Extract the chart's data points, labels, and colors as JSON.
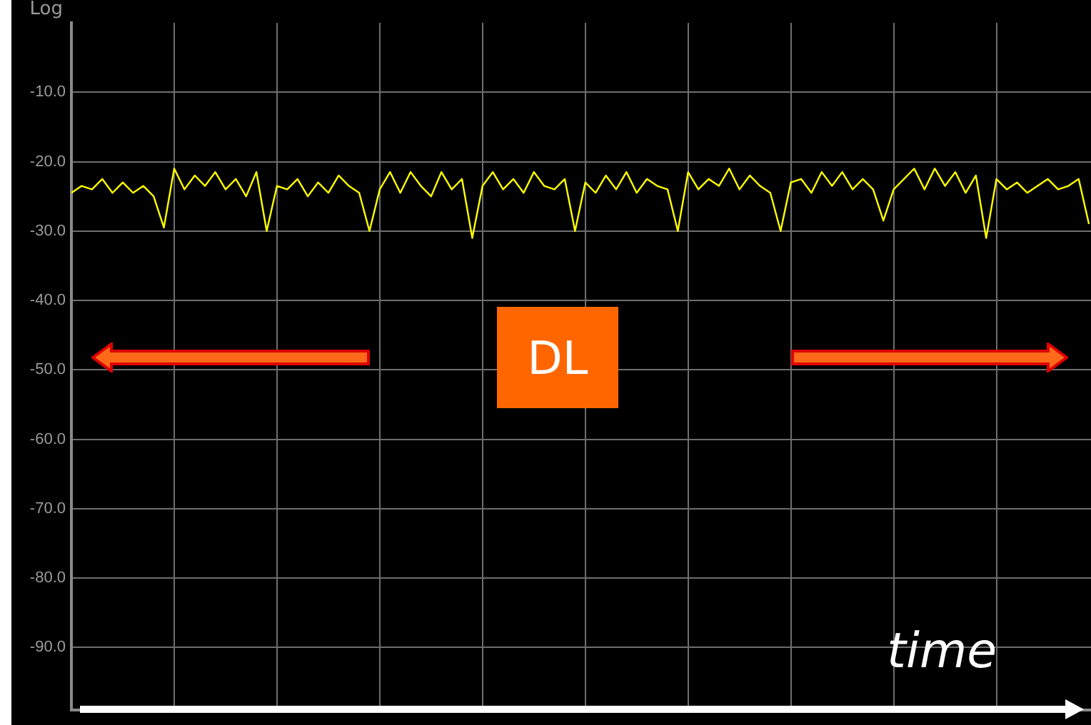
{
  "chart_data": {
    "type": "line",
    "ylabel": "Log",
    "xlabel": "time",
    "annotations": [
      "DL"
    ],
    "categories": [
      null,
      null,
      null,
      null,
      null,
      null,
      null,
      null,
      null,
      null,
      null,
      null,
      null,
      null,
      null,
      null,
      null,
      null,
      null,
      null,
      null,
      null,
      null,
      null,
      null,
      null,
      null,
      null,
      null,
      null,
      null,
      null,
      null,
      null,
      null,
      null,
      null,
      null,
      null,
      null,
      null,
      null,
      null,
      null,
      null,
      null,
      null,
      null,
      null,
      null,
      null,
      null,
      null,
      null,
      null,
      null,
      null,
      null,
      null,
      null,
      null,
      null,
      null,
      null,
      null,
      null,
      null,
      null,
      null,
      null,
      null,
      null,
      null,
      null,
      null,
      null,
      null,
      null,
      null,
      null,
      null,
      null,
      null,
      null,
      null,
      null,
      null,
      null,
      null,
      null,
      null,
      null,
      null,
      null,
      null,
      null,
      null,
      null,
      null,
      null
    ],
    "series": [
      {
        "color": "#ffff00",
        "values": [
          -24.5,
          -23.5,
          -24,
          -22.5,
          -24.5,
          -23,
          -24.5,
          -23.5,
          -25,
          -29.5,
          -21,
          -24,
          -22,
          -23.5,
          -21.5,
          -24,
          -22.5,
          -25,
          -21.5,
          -30,
          -23.5,
          -24,
          -22.5,
          -25,
          -23,
          -24.5,
          -22,
          -23.5,
          -24.5,
          -30,
          -24,
          -21.5,
          -24.5,
          -21.5,
          -23.5,
          -25,
          -21.5,
          -24,
          -22.5,
          -31,
          -23.5,
          -21.5,
          -24,
          -22.5,
          -24.5,
          -21.5,
          -23.5,
          -24,
          -22.5,
          -30,
          -23,
          -24.5,
          -22,
          -24,
          -21.5,
          -24.5,
          -22.5,
          -23.5,
          -24,
          -30,
          -21.5,
          -24,
          -22.5,
          -23.5,
          -21,
          -24,
          -22,
          -23.5,
          -24.5,
          -30,
          -23,
          -22.5,
          -24.5,
          -21.5,
          -23.5,
          -21.5,
          -24,
          -22.5,
          -24,
          -28.5,
          -24,
          -22.5,
          -21,
          -24,
          -21,
          -23.5,
          -21.5,
          -24.5,
          -22,
          -31,
          -22.5,
          -24,
          -23,
          -24.5,
          -23.5,
          -22.5,
          -24,
          -23.5,
          -22.5,
          -29
        ]
      }
    ],
    "ylim": [
      -99,
      0
    ],
    "yticks": [
      {
        "value": -90,
        "label": "-90.0"
      },
      {
        "value": -80,
        "label": "-80.0"
      },
      {
        "value": -70,
        "label": "-70.0"
      },
      {
        "value": -60,
        "label": "-60.0"
      },
      {
        "value": -50,
        "label": "-50.0"
      },
      {
        "value": -40,
        "label": "-40.0"
      },
      {
        "value": -30,
        "label": "-30.0"
      },
      {
        "value": -20,
        "label": "-20.0"
      },
      {
        "value": -10,
        "label": "-10.0"
      }
    ],
    "grid": true,
    "tick_labels": "y",
    "legend": false,
    "marker": "none",
    "line_style": "solid"
  }
}
